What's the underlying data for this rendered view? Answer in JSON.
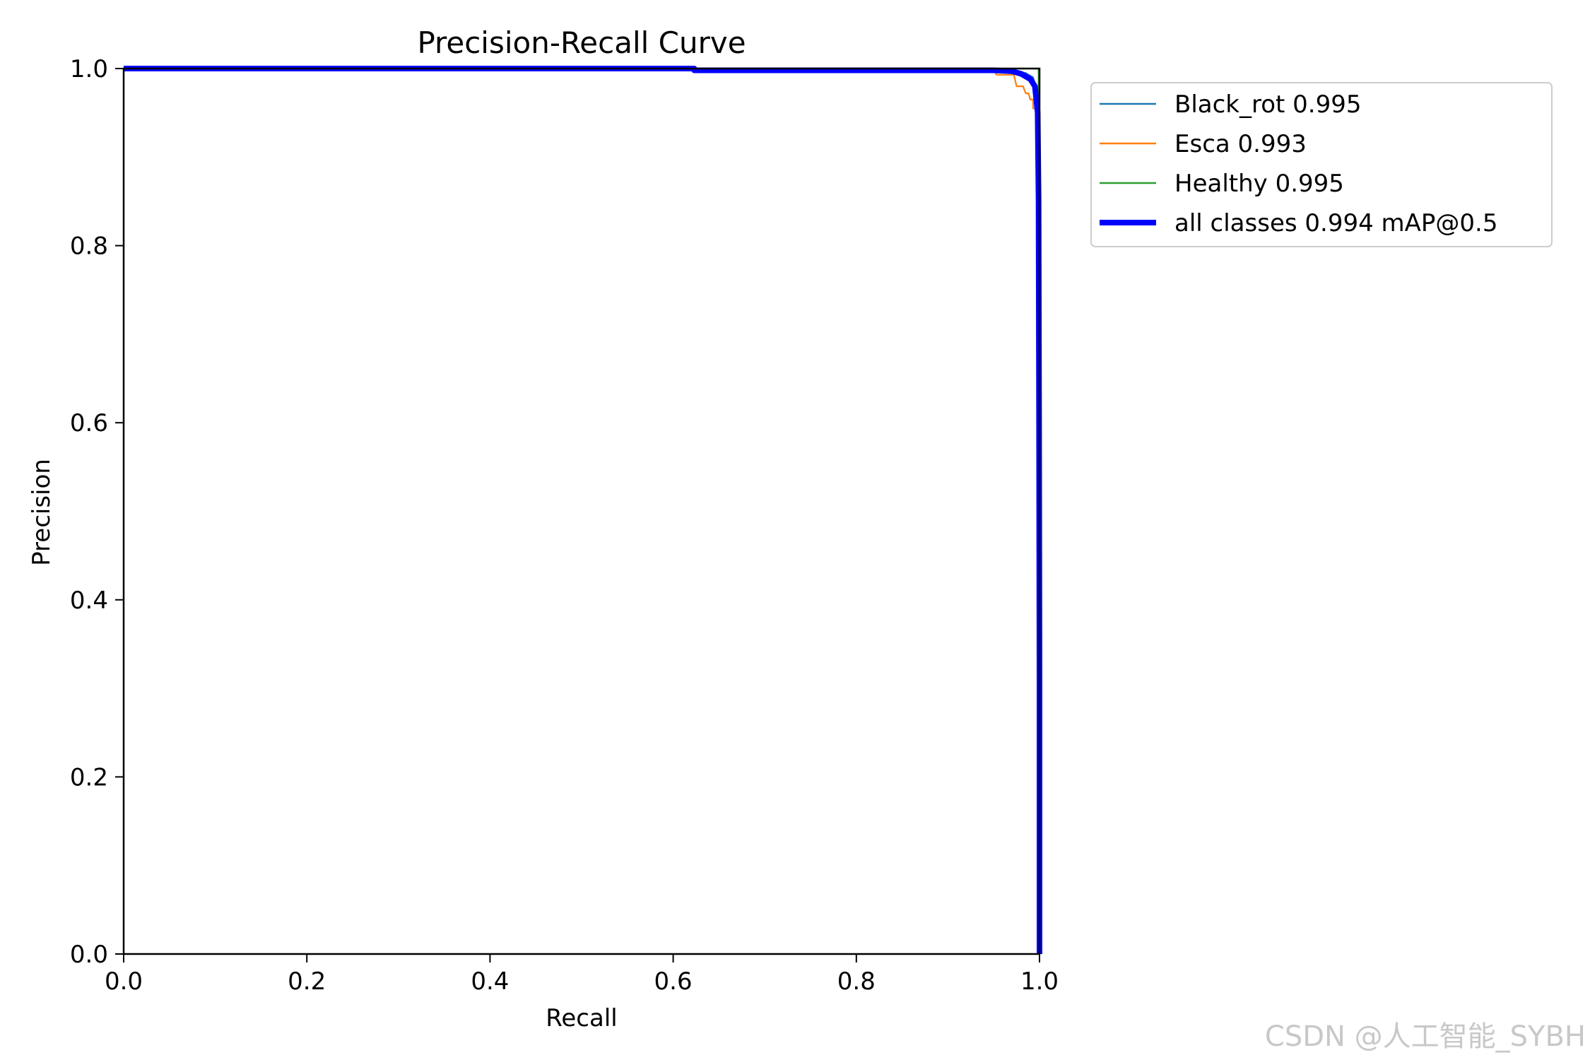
{
  "chart_data": {
    "type": "line",
    "title": "Precision-Recall Curve",
    "xlabel": "Recall",
    "ylabel": "Precision",
    "xlim": [
      0.0,
      1.0
    ],
    "ylim": [
      0.0,
      1.0
    ],
    "xticks": [
      "0.0",
      "0.2",
      "0.4",
      "0.6",
      "0.8",
      "1.0"
    ],
    "yticks": [
      "0.0",
      "0.2",
      "0.4",
      "0.6",
      "0.8",
      "1.0"
    ],
    "grid": false,
    "legend_position": "outside-top-right",
    "series": [
      {
        "name": "Black_rot 0.995",
        "color": "#1f77b4",
        "thick": false,
        "x": [
          0.0,
          0.6,
          0.95,
          0.97,
          0.985,
          0.993,
          0.996,
          0.998,
          0.999,
          1.0,
          1.0
        ],
        "y": [
          1.0,
          1.0,
          1.0,
          0.998,
          0.995,
          0.99,
          0.98,
          0.95,
          0.8,
          0.5,
          0.0
        ]
      },
      {
        "name": "Esca 0.993",
        "color": "#ff7f0e",
        "thick": false,
        "x": [
          0.0,
          0.6,
          0.95,
          0.953,
          0.972,
          0.975,
          0.982,
          0.985,
          0.988,
          0.99,
          0.993,
          0.993,
          0.996,
          0.998,
          1.0,
          1.0
        ],
        "y": [
          1.0,
          1.0,
          1.0,
          0.993,
          0.993,
          0.98,
          0.98,
          0.972,
          0.972,
          0.965,
          0.965,
          0.955,
          0.955,
          0.9,
          0.5,
          0.0
        ]
      },
      {
        "name": "Healthy 0.995",
        "color": "#2ca02c",
        "thick": false,
        "x": [
          0.0,
          0.6,
          0.97,
          0.99,
          0.997,
          0.999,
          0.999,
          1.0,
          1.0
        ],
        "y": [
          1.0,
          1.0,
          1.0,
          1.0,
          1.0,
          1.0,
          0.9,
          0.6,
          0.0
        ]
      },
      {
        "name": "all classes 0.994 mAP@0.5",
        "color": "#0000ff",
        "thick": true,
        "x": [
          0.0,
          0.623,
          0.623,
          0.95,
          0.97,
          0.98,
          0.99,
          0.995,
          0.998,
          0.999,
          0.9995,
          1.0,
          1.0
        ],
        "y": [
          1.0,
          1.0,
          0.998,
          0.998,
          0.997,
          0.994,
          0.988,
          0.98,
          0.95,
          0.85,
          0.6,
          0.3,
          0.0
        ]
      }
    ]
  },
  "watermark": "CSDN @人工智能_SYBH"
}
